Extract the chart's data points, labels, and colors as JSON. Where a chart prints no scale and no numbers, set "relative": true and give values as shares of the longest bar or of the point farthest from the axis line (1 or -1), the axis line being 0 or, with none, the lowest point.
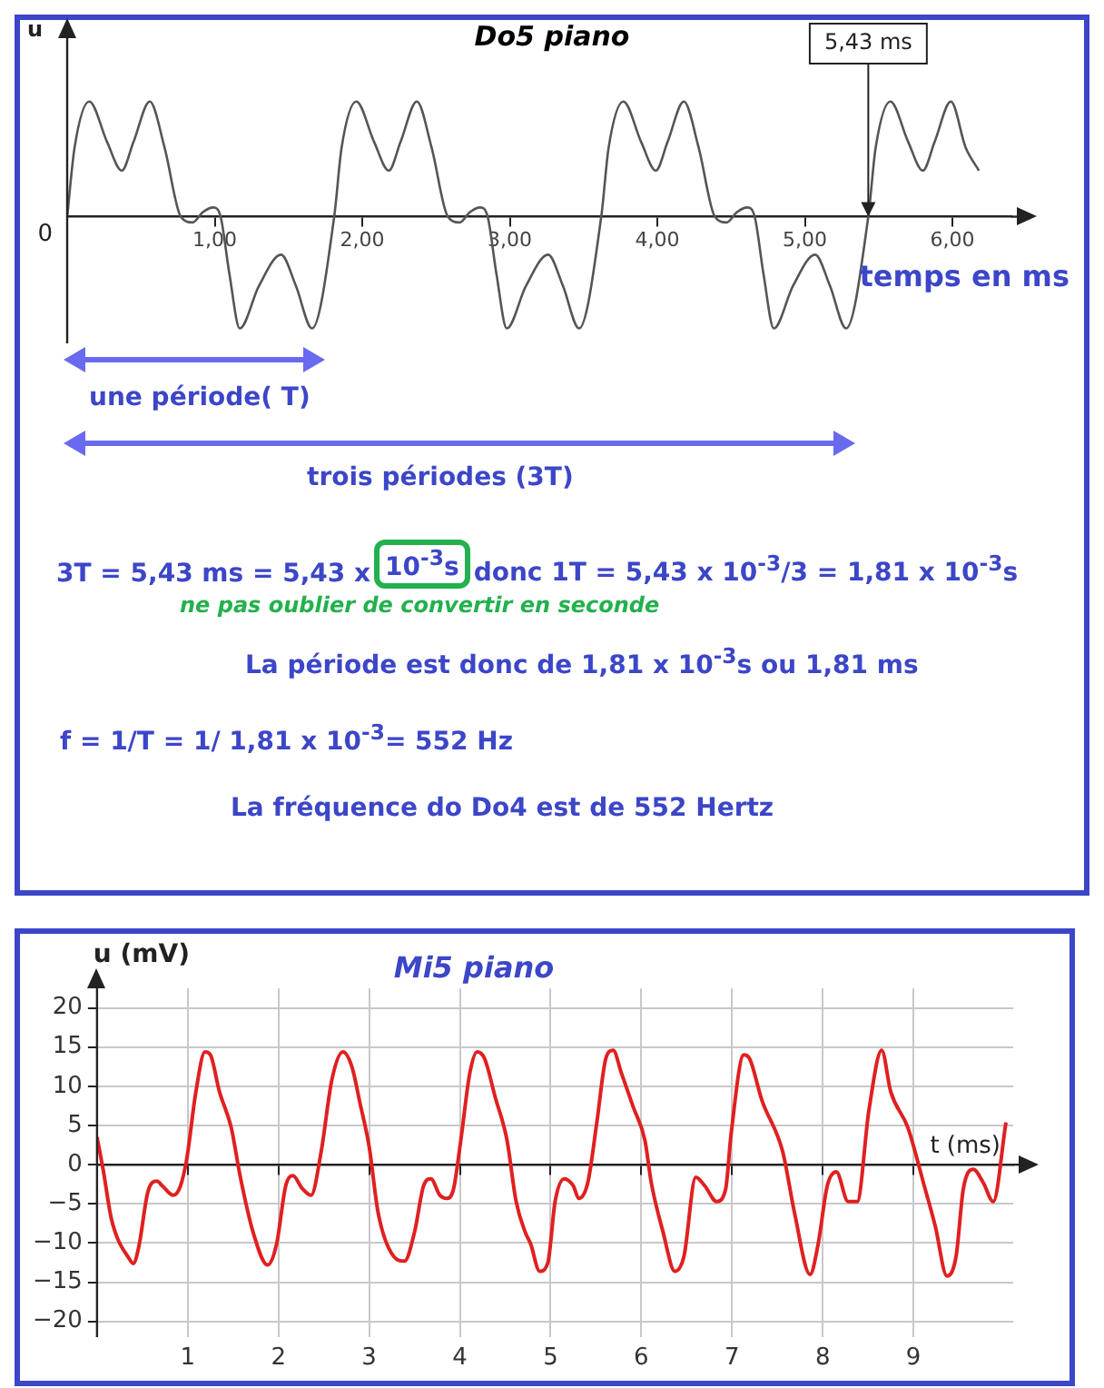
{
  "chart_data": [
    {
      "type": "line",
      "title": "Do5 piano",
      "xlabel": "temps en ms",
      "ylabel": "u",
      "relative": true,
      "x": [
        0,
        0.05,
        0.15,
        0.27,
        0.37,
        0.45,
        0.56,
        0.66,
        0.77,
        0.85,
        0.92,
        0.99,
        1.04,
        1.1,
        1.17,
        1.3,
        1.45,
        1.55,
        1.66,
        1.81,
        1.86,
        1.96,
        2.08,
        2.18,
        2.26,
        2.37,
        2.47,
        2.58,
        2.66,
        2.73,
        2.8,
        2.85,
        2.91,
        2.98,
        3.11,
        3.26,
        3.36,
        3.47,
        3.62,
        3.67,
        3.77,
        3.89,
        3.99,
        4.07,
        4.18,
        4.28,
        4.39,
        4.47,
        4.54,
        4.61,
        4.66,
        4.72,
        4.79,
        4.92,
        5.07,
        5.17,
        5.28,
        5.43,
        5.48,
        5.58,
        5.7,
        5.8,
        5.88,
        5.99,
        6.09,
        6.18
      ],
      "values": [
        0,
        0.6,
        1,
        0.65,
        0.4,
        0.65,
        1,
        0.6,
        0,
        -0.05,
        0.04,
        0.08,
        0,
        -0.5,
        -0.97,
        -0.6,
        -0.33,
        -0.6,
        -0.97,
        0,
        0.6,
        1,
        0.65,
        0.4,
        0.65,
        1,
        0.6,
        0,
        -0.05,
        0.04,
        0.08,
        0,
        -0.5,
        -0.97,
        -0.6,
        -0.33,
        -0.6,
        -0.97,
        0,
        0.6,
        1,
        0.65,
        0.4,
        0.65,
        1,
        0.6,
        0,
        -0.05,
        0.04,
        0.08,
        0,
        -0.5,
        -0.97,
        -0.6,
        -0.33,
        -0.6,
        -0.97,
        0,
        0.6,
        1,
        0.65,
        0.4,
        0.65,
        1,
        0.6,
        0.4
      ],
      "color": "#555555",
      "xlim": [
        0,
        6.4
      ],
      "xticks": [
        {
          "value": 1,
          "label": "1,00"
        },
        {
          "value": 2,
          "label": "2,00"
        },
        {
          "value": 3,
          "label": "3,00"
        },
        {
          "value": 4,
          "label": "4,00"
        },
        {
          "value": 5,
          "label": "5,00"
        },
        {
          "value": 6,
          "label": "6,00"
        }
      ],
      "annotations": [
        {
          "text": "5,43 ms",
          "x": 5.43,
          "y": 0
        },
        {
          "text": "0",
          "x": 0,
          "y": 0
        },
        "une période( T)",
        "trois périodes (3T)",
        "3T = 5,43 ms = 5,43 x",
        "10$^{-3}$s",
        "donc 1T =  5,43 x  10$^{-3}$/3 = 1,81 x 10$^{-3}$s",
        "ne pas oublier de convertir en seconde",
        "La période est donc de 1,81 x 10$^{-3}$s ou 1,81 ms",
        "f = 1/T = 1/ 1,81 x 10$^{-3}$= 552 Hz",
        "La fréquence do Do4 est de 552 Hertz"
      ]
    },
    {
      "type": "line",
      "title": "Mi5 piano",
      "xlabel": "t (ms)",
      "ylabel": "u (mV)",
      "grid": true,
      "x": [
        0,
        0.07,
        0.16,
        0.36,
        0.4,
        0.46,
        0.56,
        0.66,
        0.72,
        0.84,
        0.92,
        0.99,
        1.09,
        1.19,
        1.25,
        1.35,
        1.48,
        1.58,
        1.72,
        1.88,
        1.98,
        2.08,
        2.16,
        2.26,
        2.36,
        2.47,
        2.59,
        2.71,
        2.81,
        2.9,
        3,
        3.1,
        3.27,
        3.39,
        3.5,
        3.6,
        3.68,
        3.78,
        3.86,
        3.93,
        4.01,
        4.11,
        4.19,
        4.27,
        4.39,
        4.52,
        4.62,
        4.72,
        4.78,
        4.88,
        4.97,
        5.05,
        5.15,
        5.25,
        5.31,
        5.41,
        5.51,
        5.61,
        5.69,
        5.78,
        5.91,
        6.04,
        6.11,
        6.24,
        6.37,
        6.47,
        6.6,
        6.7,
        6.83,
        6.93,
        6.99,
        7.13,
        7.19,
        7.33,
        7.56,
        7.69,
        7.86,
        7.95,
        8.05,
        8.15,
        8.28,
        8.38,
        8.51,
        8.65,
        8.75,
        8.94,
        9.11,
        9.24,
        9.37,
        9.47,
        9.55,
        9.66,
        9.77,
        9.88,
        10.02
      ],
      "values": [
        3.5,
        -0.8,
        -7,
        -12.1,
        -12.6,
        -10.5,
        -3.5,
        -2.1,
        -2.7,
        -3.9,
        -2.7,
        0.8,
        9.3,
        14.4,
        14,
        9.3,
        4.7,
        -1.6,
        -8.6,
        -12.8,
        -10.1,
        -2.7,
        -1.4,
        -3,
        -3.9,
        1.6,
        10.9,
        14.4,
        12.5,
        7.8,
        2.3,
        -6.2,
        -11.7,
        -12.3,
        -8.6,
        -2.7,
        -1.8,
        -3.9,
        -4.3,
        -3.1,
        3.1,
        11.7,
        14.4,
        13.6,
        8.6,
        3.1,
        -4.7,
        -8.6,
        -10.1,
        -13.6,
        -12.5,
        -4.7,
        -1.8,
        -2.7,
        -4.3,
        -2.3,
        5.4,
        13.6,
        14.6,
        11.7,
        7.4,
        3.1,
        -2.3,
        -8.6,
        -13.6,
        -11.7,
        -1.6,
        -2.7,
        -4.7,
        -3.1,
        3.9,
        14,
        13.6,
        8.2,
        1.6,
        -6.2,
        -14,
        -10.1,
        -2.7,
        -0.9,
        -4.7,
        -4.7,
        7,
        14.6,
        9.3,
        4.7,
        -2.3,
        -7.8,
        -14.2,
        -11.7,
        -3.1,
        -0.6,
        -2.3,
        -4.7,
        5.4
      ],
      "color": "#e02020",
      "xlim": [
        0,
        10.1
      ],
      "xticks": [
        1,
        2,
        3,
        4,
        5,
        6,
        7,
        8,
        9
      ],
      "ylim": [
        -22,
        22.5
      ],
      "yticks": [
        -20,
        -15,
        -10,
        -5,
        0,
        5,
        10,
        15,
        20
      ]
    }
  ]
}
